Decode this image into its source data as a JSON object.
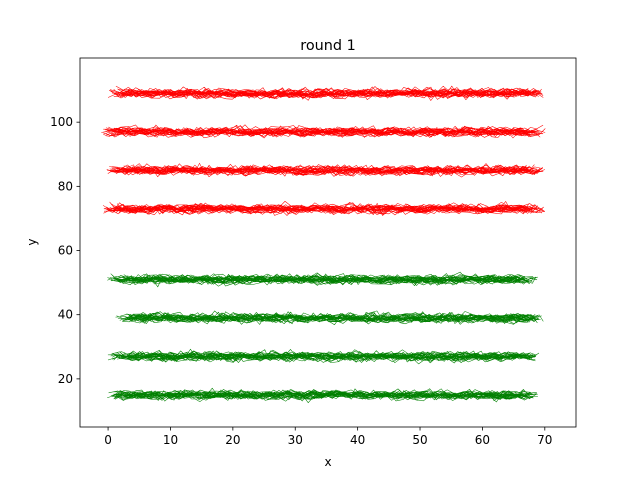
{
  "chart_data": {
    "type": "line",
    "title": "round 1",
    "xlabel": "x",
    "ylabel": "y",
    "xlim": [
      -4.5,
      75
    ],
    "ylim": [
      5,
      120
    ],
    "x_ticks": [
      0,
      10,
      20,
      30,
      40,
      50,
      60,
      70
    ],
    "y_ticks": [
      20,
      40,
      60,
      80,
      100
    ],
    "x_tick_labels": [
      "0",
      "10",
      "20",
      "30",
      "40",
      "50",
      "60",
      "70"
    ],
    "y_tick_labels": [
      "20",
      "40",
      "60",
      "80",
      "100"
    ],
    "grid": false,
    "legend": "none",
    "series": [
      {
        "color": "#ff0000",
        "center_y": 109,
        "x_range": [
          0,
          70
        ]
      },
      {
        "color": "#ff0000",
        "center_y": 97,
        "x_range": [
          -1,
          70
        ]
      },
      {
        "color": "#ff0000",
        "center_y": 85,
        "x_range": [
          0,
          70
        ]
      },
      {
        "color": "#ff0000",
        "center_y": 73,
        "x_range": [
          -1,
          70
        ]
      },
      {
        "color": "#008000",
        "center_y": 51,
        "x_range": [
          0,
          69
        ]
      },
      {
        "color": "#008000",
        "center_y": 39,
        "x_range": [
          1,
          70
        ]
      },
      {
        "color": "#008000",
        "center_y": 27,
        "x_range": [
          0,
          69
        ]
      },
      {
        "color": "#008000",
        "center_y": 15,
        "x_range": [
          0,
          69
        ]
      }
    ]
  }
}
